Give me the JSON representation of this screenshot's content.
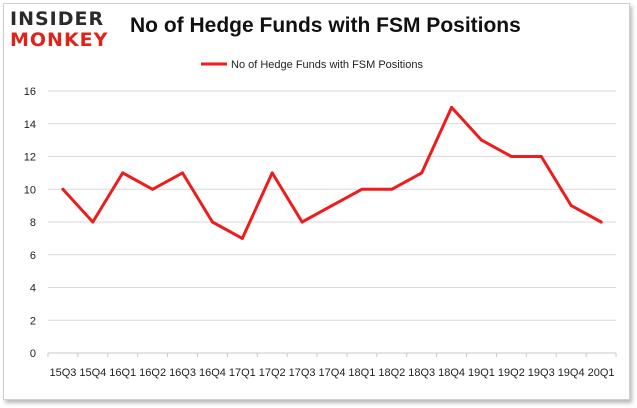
{
  "brand": {
    "line1": "INSIDER",
    "line2": "MONKEY"
  },
  "colors": {
    "series": "#ee1c1c",
    "grid": "#d9d9d9",
    "brand_red": "#e0231a"
  },
  "chart_data": {
    "type": "line",
    "title": "No of Hedge Funds with FSM Positions",
    "legend_position": "top",
    "grid": true,
    "xlabel": "",
    "ylabel": "",
    "ylim": [
      0,
      16
    ],
    "yticks": [
      "0",
      "2",
      "4",
      "6",
      "8",
      "10",
      "12",
      "14",
      "16"
    ],
    "categories": [
      "15Q3",
      "15Q4",
      "16Q1",
      "16Q2",
      "16Q3",
      "16Q4",
      "17Q1",
      "17Q2",
      "17Q3",
      "17Q4",
      "18Q1",
      "18Q2",
      "18Q3",
      "18Q4",
      "19Q1",
      "19Q2",
      "19Q3",
      "19Q4",
      "20Q1"
    ],
    "series": [
      {
        "name": "No of Hedge Funds with FSM Positions",
        "values": [
          10,
          8,
          11,
          10,
          11,
          8,
          7,
          11,
          8,
          9,
          10,
          10,
          11,
          15,
          13,
          12,
          12,
          9,
          8
        ]
      }
    ]
  }
}
